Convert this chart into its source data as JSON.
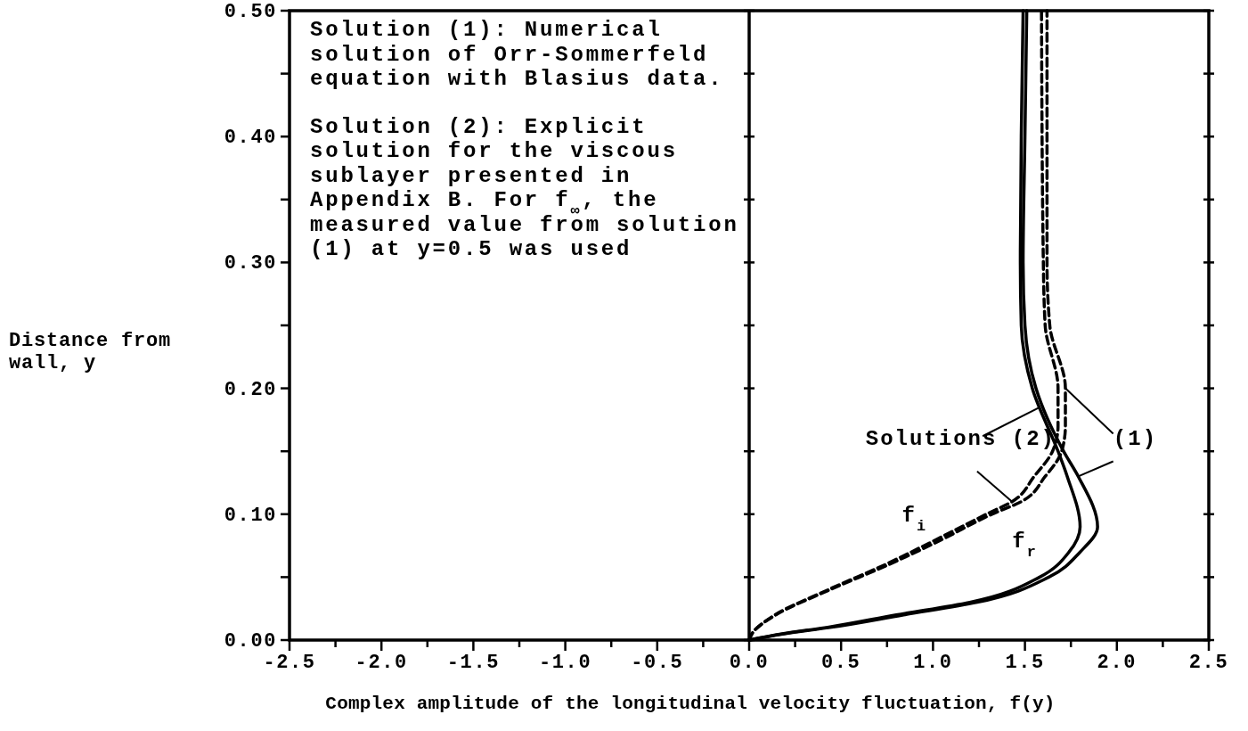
{
  "chart_data": {
    "type": "line",
    "xlabel": "Complex amplitude of the longitudinal velocity fluctuation, f(y)",
    "ylabel": "Distance from wall, y",
    "xlim": [
      -2.5,
      2.5
    ],
    "ylim": [
      0,
      0.5
    ],
    "xticks": [
      -2.5,
      {
        "value": -2.25,
        "label": null
      },
      {
        "value": -2,
        "label": "-2.0"
      },
      {
        "value": -1.75,
        "label": null
      },
      -1.5,
      {
        "value": -1.25,
        "label": null
      },
      {
        "value": -1,
        "label": "-1.0"
      },
      {
        "value": -0.75,
        "label": null
      },
      -0.5,
      {
        "value": -0.25,
        "label": null
      },
      {
        "value": 0,
        "label": "0.0"
      },
      {
        "value": 0.25,
        "label": null
      },
      0.5,
      {
        "value": 0.75,
        "label": null
      },
      {
        "value": 1,
        "label": "1.0"
      },
      {
        "value": 1.25,
        "label": null
      },
      1.5,
      {
        "value": 1.75,
        "label": null
      },
      {
        "value": 2,
        "label": "2.0"
      },
      {
        "value": 2.25,
        "label": null
      },
      2.5
    ],
    "yticks": [
      {
        "value": 0,
        "label": "0.00"
      },
      {
        "value": 0.05,
        "label": null
      },
      {
        "value": 0.1,
        "label": "0.10"
      },
      {
        "value": 0.15,
        "label": null
      },
      {
        "value": 0.2,
        "label": "0.20"
      },
      {
        "value": 0.25,
        "label": null
      },
      {
        "value": 0.3,
        "label": "0.30"
      },
      {
        "value": 0.35,
        "label": null
      },
      {
        "value": 0.4,
        "label": "0.40"
      },
      {
        "value": 0.45,
        "label": null
      },
      {
        "value": 0.5,
        "label": "0.50"
      }
    ],
    "grid": false,
    "ref_lines": [
      {
        "axis": "x",
        "value": 0,
        "color": "#000000"
      }
    ],
    "series": [
      {
        "color": "#000000",
        "line_style": "solid",
        "x": [
          0,
          0.19,
          0.44,
          0.84,
          1.24,
          1.63,
          1.8,
          1.895,
          1.79,
          1.71,
          1.56,
          1.5,
          1.49,
          1.5,
          1.51
        ],
        "values": [
          0,
          0.005,
          0.01,
          0.02,
          0.03,
          0.05,
          0.07,
          0.09,
          0.13,
          0.15,
          0.2,
          0.25,
          0.3,
          0.4,
          0.5
        ]
      },
      {
        "color": "#000000",
        "line_style": "solid",
        "x": [
          0,
          0.18,
          0.42,
          0.8,
          1.2,
          1.58,
          1.74,
          1.8,
          1.73,
          1.68,
          1.54,
          1.48,
          1.475,
          1.48,
          1.49
        ],
        "values": [
          0,
          0.005,
          0.01,
          0.02,
          0.03,
          0.05,
          0.07,
          0.09,
          0.13,
          0.15,
          0.2,
          0.25,
          0.3,
          0.4,
          0.5
        ]
      },
      {
        "color": "#000000",
        "line_style": "dashed",
        "x": [
          0,
          0.015,
          0.145,
          0.44,
          0.76,
          1.05,
          1.32,
          1.48,
          1.61,
          1.7,
          1.72,
          1.72,
          1.635,
          1.62,
          1.62
        ],
        "values": [
          0,
          0.005,
          0.02,
          0.04,
          0.06,
          0.08,
          0.1,
          0.11,
          0.13,
          0.15,
          0.17,
          0.2,
          0.25,
          0.3,
          0.5
        ]
      },
      {
        "color": "#000000",
        "line_style": "dashed",
        "x": [
          0,
          0.015,
          0.14,
          0.43,
          0.74,
          1.02,
          1.29,
          1.43,
          1.55,
          1.65,
          1.68,
          1.68,
          1.61,
          1.6,
          1.59
        ],
        "values": [
          0,
          0.005,
          0.02,
          0.04,
          0.06,
          0.08,
          0.1,
          0.11,
          0.13,
          0.15,
          0.17,
          0.2,
          0.25,
          0.3,
          0.5
        ]
      }
    ],
    "annotations": [
      "Solution (1): Numerical solution of Orr-Sommerfeld equation with Blasius data.",
      "Solution (2): Explicit solution for the viscous sublayer presented in Appendix B. For f$_{∞}$, the measured value from solution (1) at y=0.5 was used",
      {
        "text": "Solutions (2)",
        "x": 1.43,
        "y": 0.11
      },
      {
        "text": "(1)",
        "x": 1.72,
        "y": 0.2
      },
      "f$_{i}$",
      "f$_{r}$"
    ]
  }
}
